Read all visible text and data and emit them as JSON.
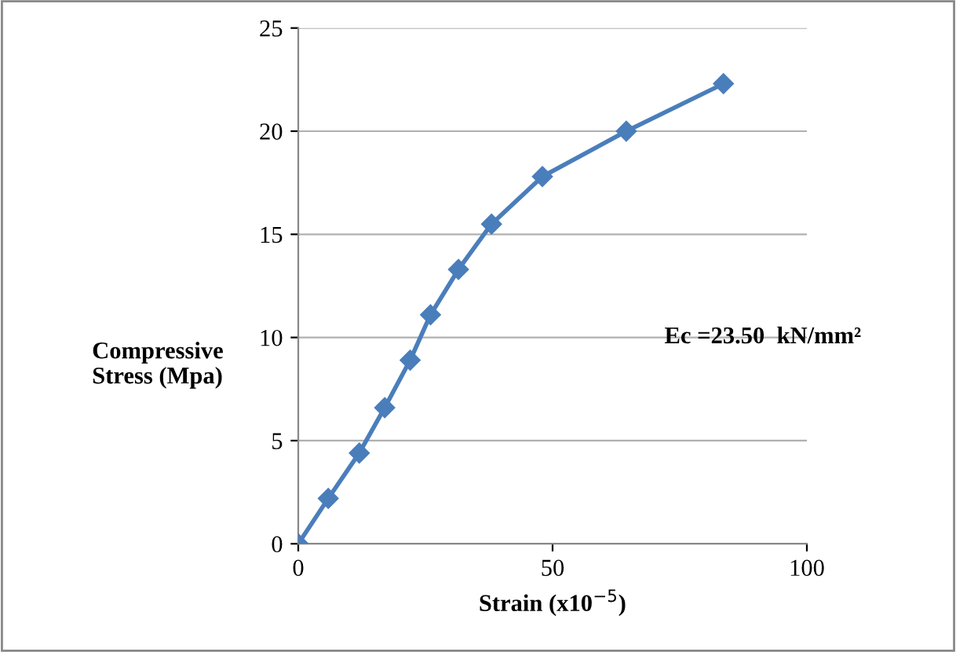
{
  "chart_data": {
    "type": "line",
    "xlabel": "Strain (x10$^{−5}$)",
    "ylabel": "Compressive\nStress (Mpa)",
    "annotations": [
      "Ec =23.50  kN/mm²"
    ],
    "x": [
      0,
      5.9,
      12,
      17,
      22,
      26,
      31.5,
      38,
      48,
      64.5,
      83.6
    ],
    "series": [
      {
        "color": "#4a7ebb",
        "values": [
          0,
          2.2,
          4.4,
          6.6,
          8.9,
          11.1,
          13.3,
          15.5,
          17.8,
          20.0,
          22.3
        ]
      }
    ],
    "xlim": [
      0,
      100
    ],
    "xticks": [
      0,
      50,
      100
    ],
    "ylim": [
      0,
      25
    ],
    "yticks": [
      0,
      5,
      10,
      15,
      20,
      25
    ],
    "grid": "y",
    "legend": false,
    "marker": "diamond",
    "line_style": "solid"
  }
}
